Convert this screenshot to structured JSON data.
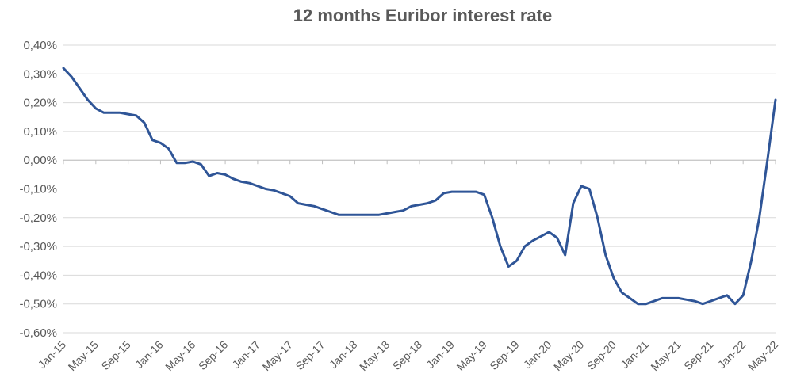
{
  "chart_data": {
    "type": "line",
    "title": "12 months Euribor interest rate",
    "xlabel": "",
    "ylabel": "",
    "ylim": [
      -0.6,
      0.4
    ],
    "y_tick_labels": [
      "0,40%",
      "0,30%",
      "0,20%",
      "0,10%",
      "0,00%",
      "-0,10%",
      "-0,20%",
      "-0,30%",
      "-0,40%",
      "-0,50%",
      "-0,60%"
    ],
    "x_tick_labels": [
      "Jan-15",
      "May-15",
      "Sep-15",
      "Jan-16",
      "May-16",
      "Sep-16",
      "Jan-17",
      "May-17",
      "Sep-17",
      "Jan-18",
      "May-18",
      "Sep-18",
      "Jan-19",
      "May-19",
      "Sep-19",
      "Jan-20",
      "May-20",
      "Sep-20",
      "Jan-21",
      "May-21",
      "Sep-21",
      "Jan-22",
      "May-22"
    ],
    "grid": "horizontal",
    "legend": "none",
    "series": [
      {
        "color": "#2F5597",
        "x": [
          "2015-01",
          "2015-02",
          "2015-03",
          "2015-04",
          "2015-05",
          "2015-06",
          "2015-07",
          "2015-08",
          "2015-09",
          "2015-10",
          "2015-11",
          "2015-12",
          "2016-01",
          "2016-02",
          "2016-03",
          "2016-04",
          "2016-05",
          "2016-06",
          "2016-07",
          "2016-08",
          "2016-09",
          "2016-10",
          "2016-11",
          "2016-12",
          "2017-01",
          "2017-02",
          "2017-03",
          "2017-04",
          "2017-05",
          "2017-06",
          "2017-07",
          "2017-08",
          "2017-09",
          "2017-10",
          "2017-11",
          "2017-12",
          "2018-01",
          "2018-02",
          "2018-03",
          "2018-04",
          "2018-05",
          "2018-06",
          "2018-07",
          "2018-08",
          "2018-09",
          "2018-10",
          "2018-11",
          "2018-12",
          "2019-01",
          "2019-02",
          "2019-03",
          "2019-04",
          "2019-05",
          "2019-06",
          "2019-07",
          "2019-08",
          "2019-09",
          "2019-10",
          "2019-11",
          "2019-12",
          "2020-01",
          "2020-02",
          "2020-03",
          "2020-04",
          "2020-05",
          "2020-06",
          "2020-07",
          "2020-08",
          "2020-09",
          "2020-10",
          "2020-11",
          "2020-12",
          "2021-01",
          "2021-02",
          "2021-03",
          "2021-04",
          "2021-05",
          "2021-06",
          "2021-07",
          "2021-08",
          "2021-09",
          "2021-10",
          "2021-11",
          "2021-12",
          "2022-01",
          "2022-02",
          "2022-03",
          "2022-04",
          "2022-05"
        ],
        "values": [
          0.32,
          0.29,
          0.25,
          0.21,
          0.18,
          0.165,
          0.165,
          0.165,
          0.16,
          0.155,
          0.13,
          0.07,
          0.06,
          0.04,
          -0.01,
          -0.01,
          -0.005,
          -0.015,
          -0.055,
          -0.045,
          -0.05,
          -0.065,
          -0.075,
          -0.08,
          -0.09,
          -0.1,
          -0.105,
          -0.115,
          -0.125,
          -0.15,
          -0.155,
          -0.16,
          -0.17,
          -0.18,
          -0.19,
          -0.19,
          -0.19,
          -0.19,
          -0.19,
          -0.19,
          -0.185,
          -0.18,
          -0.175,
          -0.16,
          -0.155,
          -0.15,
          -0.14,
          -0.115,
          -0.11,
          -0.11,
          -0.11,
          -0.11,
          -0.12,
          -0.2,
          -0.3,
          -0.37,
          -0.35,
          -0.3,
          -0.28,
          -0.265,
          -0.25,
          -0.27,
          -0.33,
          -0.15,
          -0.09,
          -0.1,
          -0.2,
          -0.33,
          -0.41,
          -0.46,
          -0.48,
          -0.5,
          -0.5,
          -0.49,
          -0.48,
          -0.48,
          -0.48,
          -0.485,
          -0.49,
          -0.5,
          -0.49,
          -0.48,
          -0.47,
          -0.5,
          -0.47,
          -0.35,
          -0.2,
          0.0,
          0.21
        ]
      }
    ]
  }
}
